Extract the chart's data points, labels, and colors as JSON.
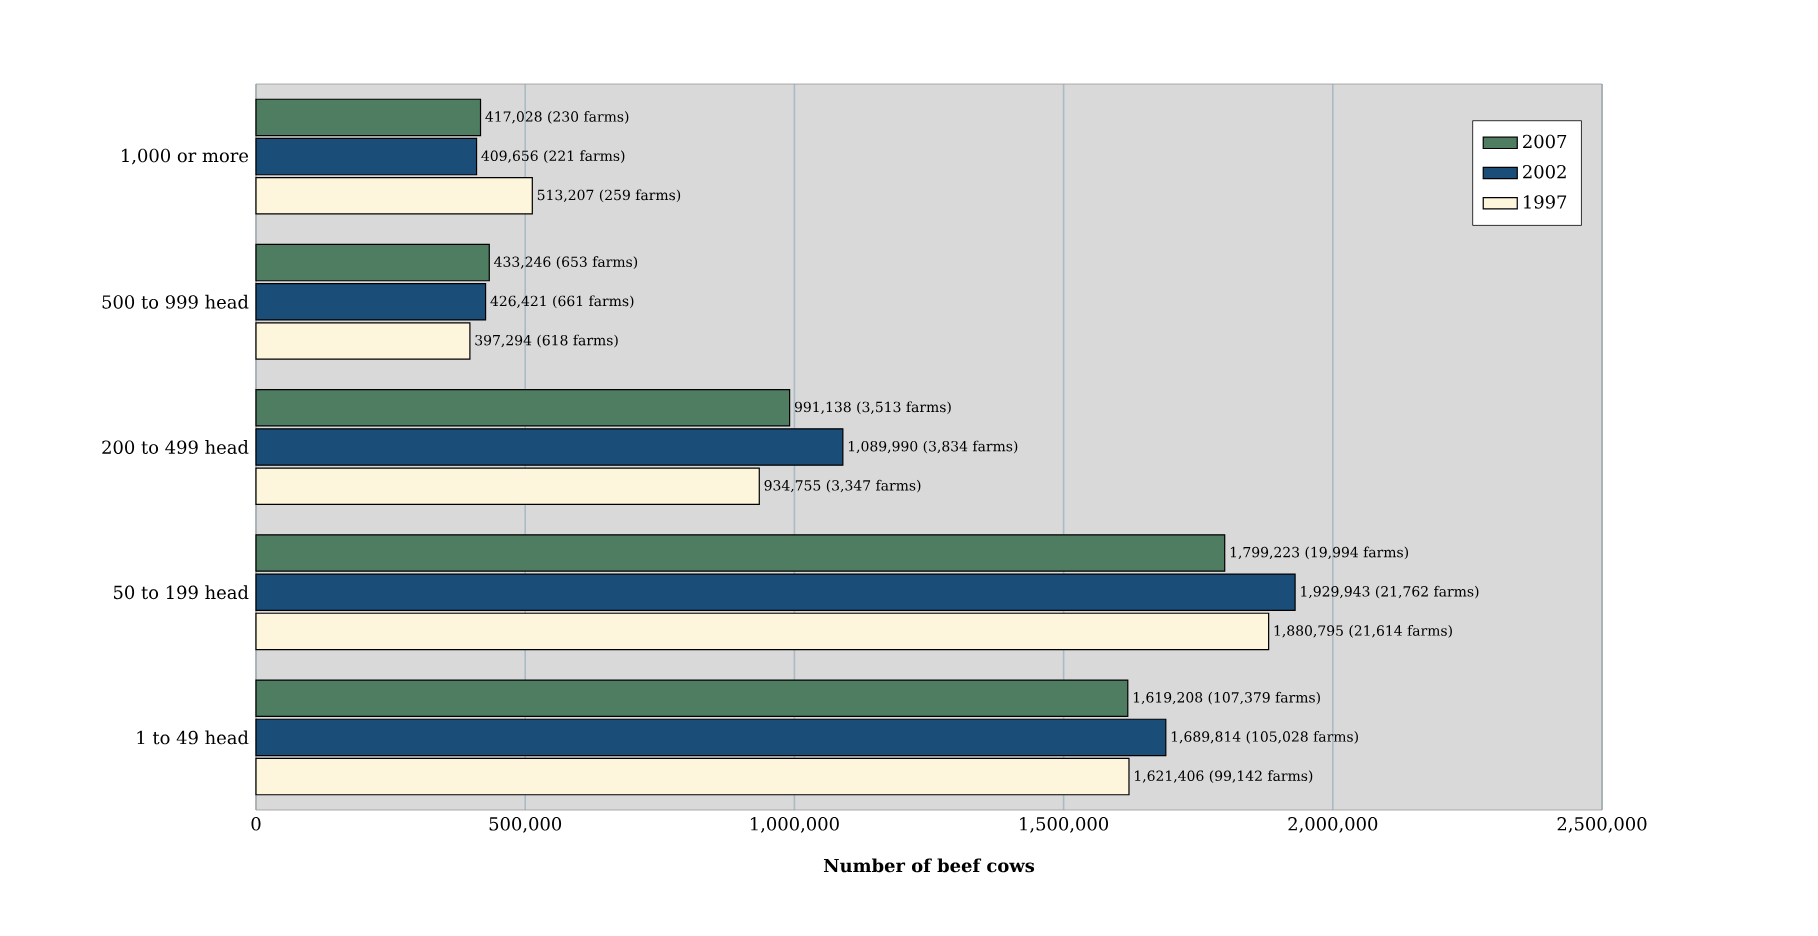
{
  "chart_data": {
    "type": "bar",
    "orientation": "horizontal",
    "xlabel": "Number of beef cows",
    "categories": [
      "1,000 or more",
      "500 to 999 head",
      "200 to 499 head",
      "50 to 199 head",
      "1 to 49 head"
    ],
    "series": [
      {
        "name": "2007",
        "color": "#4e7d62",
        "values": [
          417028,
          433246,
          991138,
          1799223,
          1619208
        ],
        "value_labels": [
          "417,028 (230 farms)",
          "433,246 (653 farms)",
          "991,138 (3,513 farms)",
          "1,799,223 (19,994 farms)",
          "1,619,208 (107,379 farms)"
        ]
      },
      {
        "name": "2002",
        "color": "#1a4e78",
        "values": [
          409656,
          426421,
          1089990,
          1929943,
          1689814
        ],
        "value_labels": [
          "409,656 (221 farms)",
          "426,421 (661 farms)",
          "1,089,990 (3,834 farms)",
          "1,929,943 (21,762 farms)",
          "1,689,814 (105,028 farms)"
        ]
      },
      {
        "name": "1997",
        "color": "#fdf6dc",
        "values": [
          513207,
          397294,
          934755,
          1880795,
          1621406
        ],
        "value_labels": [
          "513,207 (259 farms)",
          "397,294 (618 farms)",
          "934,755 (3,347 farms)",
          "1,880,795 (21,614 farms)",
          "1,621,406 (99,142 farms)"
        ]
      }
    ],
    "xlim": [
      0,
      2500000
    ],
    "xticks": [
      {
        "value": 0,
        "label": "0"
      },
      {
        "value": 500000,
        "label": "500,000"
      },
      {
        "value": 1000000,
        "label": "1,000,000"
      },
      {
        "value": 1500000,
        "label": "1,500,000"
      },
      {
        "value": 2000000,
        "label": "2,000,000"
      },
      {
        "value": 2500000,
        "label": "2,500,000"
      }
    ],
    "grid": "x",
    "legend": "top right"
  }
}
